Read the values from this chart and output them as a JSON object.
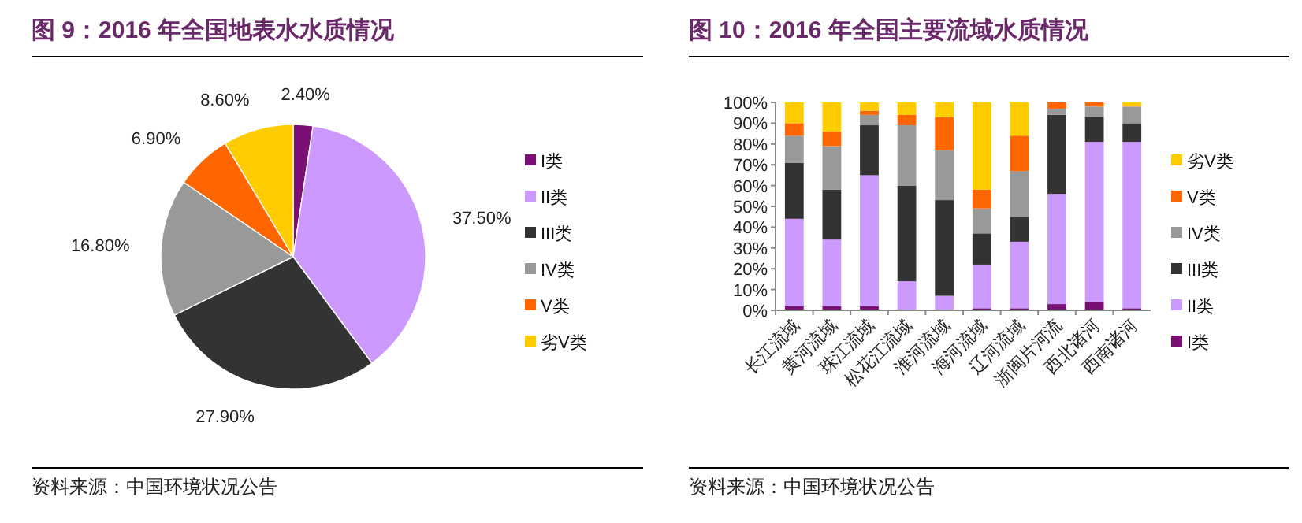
{
  "chart_data": [
    {
      "type": "pie",
      "title": "图 9：2016 年全国地表水水质情况",
      "categories": [
        "I类",
        "II类",
        "III类",
        "IV类",
        "V类",
        "劣V类"
      ],
      "values": [
        2.4,
        37.5,
        27.9,
        16.8,
        6.9,
        8.6
      ],
      "value_labels": [
        "2.40%",
        "37.50%",
        "27.90%",
        "16.80%",
        "6.90%",
        "8.60%"
      ],
      "colors": [
        "#7a0f74",
        "#cc99ff",
        "#333333",
        "#999999",
        "#ff6600",
        "#ffcc00"
      ],
      "legend": "right",
      "annotations": [
        "资料来源：中国环境状况公告"
      ]
    },
    {
      "type": "bar",
      "stacked": true,
      "title": "图 10：2016 年全国主要流域水质情况",
      "categories": [
        "长江流域",
        "黄河流域",
        "珠江流域",
        "松花江流域",
        "淮河流域",
        "海河流域",
        "辽河流域",
        "浙闽片河流",
        "西北诸河",
        "西南诸河"
      ],
      "series": [
        {
          "name": "I类",
          "color": "#7a0f74",
          "values": [
            2,
            2,
            2,
            0,
            0,
            1,
            1,
            3,
            4,
            1
          ]
        },
        {
          "name": "II类",
          "color": "#cc99ff",
          "values": [
            42,
            32,
            63,
            14,
            7,
            21,
            32,
            53,
            77,
            80
          ]
        },
        {
          "name": "III类",
          "color": "#333333",
          "values": [
            27,
            24,
            24,
            46,
            46,
            15,
            12,
            38,
            12,
            9
          ]
        },
        {
          "name": "IV类",
          "color": "#999999",
          "values": [
            13,
            21,
            5,
            29,
            24,
            12,
            22,
            3,
            5,
            8
          ]
        },
        {
          "name": "V类",
          "color": "#ff6600",
          "values": [
            6,
            7,
            2,
            5,
            16,
            9,
            17,
            3,
            2,
            0
          ]
        },
        {
          "name": "劣V类",
          "color": "#ffcc00",
          "values": [
            10,
            14,
            4,
            6,
            7,
            42,
            16,
            0,
            0,
            2
          ]
        }
      ],
      "ylim": [
        0,
        100
      ],
      "yticks": [
        {
          "value": 0,
          "label": "0%"
        },
        {
          "value": 10,
          "label": "10%"
        },
        {
          "value": 20,
          "label": "20%"
        },
        {
          "value": 30,
          "label": "30%"
        },
        {
          "value": 40,
          "label": "40%"
        },
        {
          "value": 50,
          "label": "50%"
        },
        {
          "value": 60,
          "label": "60%"
        },
        {
          "value": 70,
          "label": "70%"
        },
        {
          "value": 80,
          "label": "80%"
        },
        {
          "value": 90,
          "label": "90%"
        },
        {
          "value": 100,
          "label": "100%"
        }
      ],
      "grid": false,
      "legend": "right",
      "annotations": [
        "资料来源：中国环境状况公告"
      ]
    }
  ]
}
